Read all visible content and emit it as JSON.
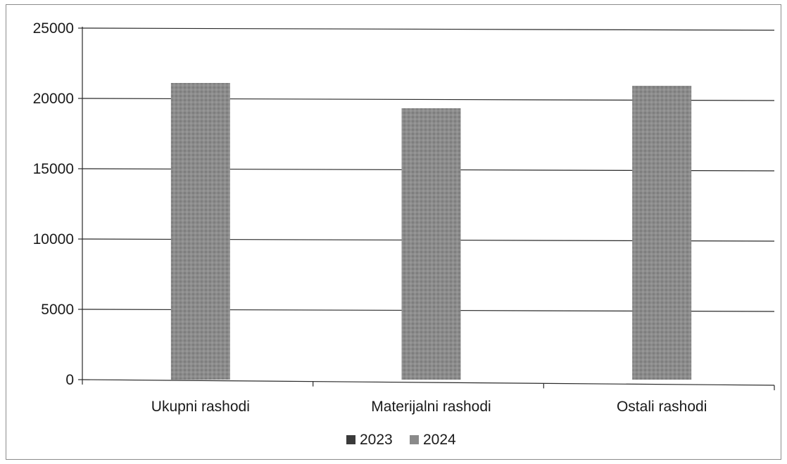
{
  "chart_data": {
    "type": "bar",
    "title": "",
    "xlabel": "",
    "ylabel": "",
    "categories": [
      "Ukupni rashodi",
      "Materijalni rashodi",
      "Ostali rashodi"
    ],
    "series": [
      {
        "name": "2023",
        "values": [
          null,
          null,
          null
        ],
        "color": "#3a3a3a"
      },
      {
        "name": "2024",
        "values": [
          21100,
          19300,
          20900
        ],
        "color": "#8a8a8a"
      }
    ],
    "ylim": [
      0,
      25000
    ],
    "yticks": [
      "0",
      "5000",
      "10000",
      "15000",
      "20000",
      "25000"
    ],
    "grid": true,
    "legend_position": "bottom"
  }
}
